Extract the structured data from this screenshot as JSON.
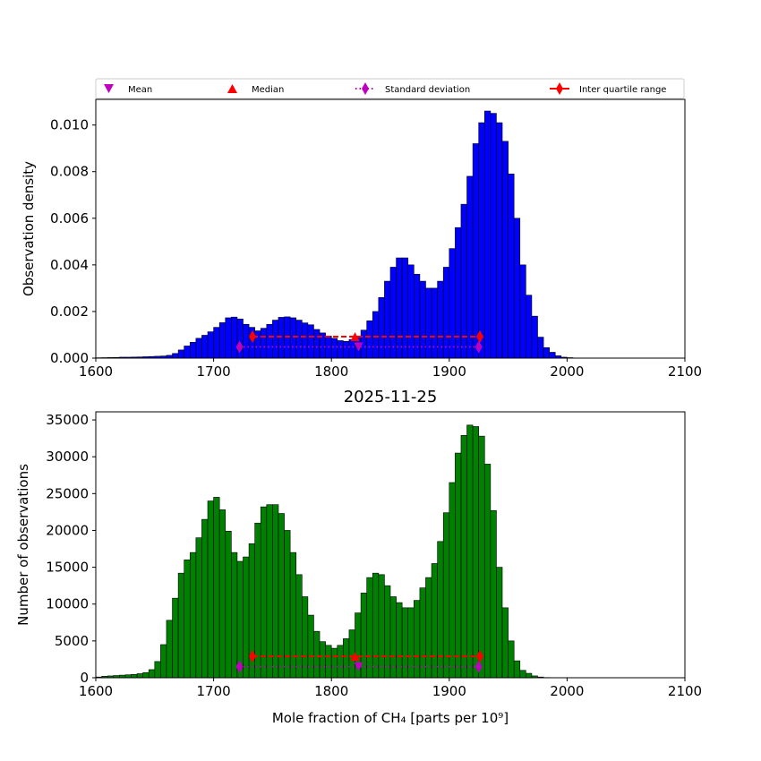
{
  "colors": {
    "top_bars": "#0000ff",
    "bottom_bars": "#008000",
    "mean": "#bf00bf",
    "median": "#ff0000",
    "std": "#bf00bf",
    "iqr": "#ff0000"
  },
  "legend": {
    "mean": "Mean",
    "median": "Median",
    "std": "Standard deviation",
    "iqr": "Inter quartile range"
  },
  "chart_data": [
    {
      "type": "bar",
      "ylabel": "Observation density",
      "xlim": [
        1600,
        2100
      ],
      "ylim": [
        0,
        0.0111
      ],
      "xticks": [
        "1600",
        "1700",
        "1800",
        "1900",
        "2000",
        "2100"
      ],
      "yticks": [
        "0.000",
        "0.002",
        "0.004",
        "0.006",
        "0.008",
        "0.010"
      ],
      "bin_start": 1600,
      "bin_width": 5,
      "values": [
        1.5e-05,
        2e-05,
        2.5e-05,
        3e-05,
        4e-05,
        4e-05,
        4.5e-05,
        5e-05,
        6e-05,
        7e-05,
        8e-05,
        9e-05,
        0.00012,
        0.0002,
        0.00035,
        0.00052,
        0.00068,
        0.00085,
        0.00098,
        0.00113,
        0.00132,
        0.00152,
        0.00173,
        0.00176,
        0.00168,
        0.00145,
        0.00132,
        0.00117,
        0.00128,
        0.00145,
        0.00163,
        0.00175,
        0.00177,
        0.00173,
        0.00163,
        0.00151,
        0.00143,
        0.00123,
        0.00108,
        0.00095,
        0.00085,
        0.00075,
        0.00072,
        0.0008,
        0.00095,
        0.0012,
        0.0016,
        0.002,
        0.0026,
        0.0033,
        0.0039,
        0.0043,
        0.0043,
        0.004,
        0.0036,
        0.0033,
        0.003,
        0.003,
        0.0033,
        0.0039,
        0.0047,
        0.0056,
        0.0066,
        0.0078,
        0.0092,
        0.0101,
        0.0106,
        0.0105,
        0.0101,
        0.0093,
        0.0079,
        0.006,
        0.004,
        0.0027,
        0.0018,
        0.0009,
        0.00045,
        0.00025,
        0.0001,
        4e-05,
        2e-05
      ],
      "stats": {
        "mean": 1823,
        "median": 1820,
        "std": [
          1722,
          1925
        ],
        "iqr": [
          1733,
          1926
        ]
      },
      "marker_y": {
        "mean": 0.00048,
        "std": 0.00048,
        "median": 0.00092,
        "iqr": 0.00092
      }
    },
    {
      "type": "bar",
      "title": "2025-11-25",
      "xlabel": "Mole fraction of CH₄ [parts per 10⁹]",
      "ylabel": "Number of observations",
      "xlim": [
        1600,
        2100
      ],
      "ylim": [
        0,
        36100
      ],
      "xticks": [
        "1600",
        "1700",
        "1800",
        "1900",
        "2000",
        "2100"
      ],
      "yticks": [
        "0",
        "5000",
        "10000",
        "15000",
        "20000",
        "25000",
        "30000",
        "35000"
      ],
      "bin_start": 1600,
      "bin_width": 5,
      "values": [
        100,
        200,
        250,
        300,
        350,
        400,
        450,
        550,
        700,
        1100,
        2200,
        4500,
        7800,
        10800,
        14200,
        16000,
        17000,
        19000,
        21500,
        24000,
        24500,
        22800,
        19900,
        17000,
        15800,
        16400,
        18200,
        21000,
        23200,
        23500,
        23500,
        22300,
        20000,
        17000,
        14000,
        11000,
        8500,
        6300,
        4900,
        4400,
        4000,
        4400,
        5300,
        6500,
        8800,
        11500,
        13600,
        14200,
        14000,
        12500,
        11000,
        10200,
        9500,
        9500,
        10500,
        12200,
        13600,
        15500,
        18500,
        22400,
        26500,
        30500,
        32900,
        34300,
        34100,
        32800,
        29000,
        22700,
        15000,
        9500,
        5000,
        2300,
        1000,
        600,
        250,
        100,
        30
      ],
      "stats": {
        "mean": 1823,
        "median": 1820,
        "std": [
          1722,
          1925
        ],
        "iqr": [
          1733,
          1926
        ]
      },
      "marker_y": {
        "mean": 1500,
        "std": 1500,
        "median": 2900,
        "iqr": 2900
      }
    }
  ]
}
